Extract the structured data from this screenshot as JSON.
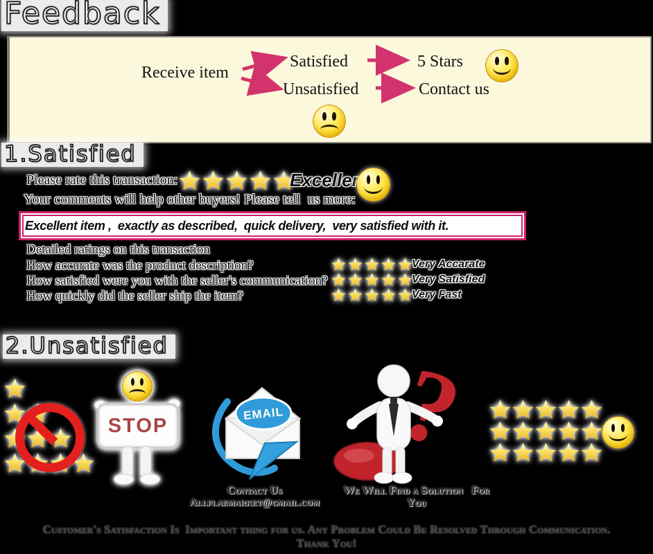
{
  "title": "Feedback",
  "flowchart": {
    "receive_item": "Receive item",
    "satisfied": "Satisfied",
    "five_stars": "5 Stars",
    "unsatisfied": "Unsatisfied",
    "contact_us": "Contact us"
  },
  "satisfied_section": {
    "heading": "1.Satisfied",
    "rate_prompt": "Please rate this transaction:",
    "rate_stars": 5,
    "rate_value": "Excellent",
    "comments_prompt": "Your comments will help other buyers! Please tell  us more:",
    "comment_text": "Excellent item ,  exactly as described,  quick delivery,  very satisfied with it.",
    "detailed_heading": "Detailed ratings on this transaction",
    "detailed_ratings": [
      {
        "question": "How accurate was the product description?",
        "stars": 5,
        "rating": "Very Accarate"
      },
      {
        "question": "How satisfied were you with the seller's communication?",
        "stars": 5,
        "rating": "Very Satisfied"
      },
      {
        "question": "How quickly did the seller ship the item?",
        "stars": 5,
        "rating": "Very Fast"
      }
    ]
  },
  "unsatisfied_section": {
    "heading": "2.Unsatisfied",
    "low_rating_pyramid_rows": [
      1,
      2,
      3,
      4
    ],
    "stop_sign_text": "STOP",
    "email_badge_text": "EMAIL",
    "question_mark": "?",
    "contact_caption": "Contact Us",
    "contact_email": "Allflaemarket@gmail.com",
    "solution_caption_line1": "We Will Find a Solution   For",
    "solution_caption_line2": "You",
    "five_star_grid_rows": [
      5,
      5,
      5
    ]
  },
  "footer": {
    "line1": "Customer's Satisfaction Is  Important thing for us. Any Problem Could Be Resolved Through Communication.",
    "line2": "Thank You!"
  },
  "colors": {
    "arrow_pink": "#d2336d",
    "star_gold": "#edbd27",
    "stop_red": "#a94545",
    "alert_red": "#e3201d",
    "question_red": "#c2242c",
    "email_blue": "#2f9bd8",
    "smiley_yellow": "#ffd821",
    "flow_box_bg": "#fbf8dc",
    "background": "#000000"
  }
}
